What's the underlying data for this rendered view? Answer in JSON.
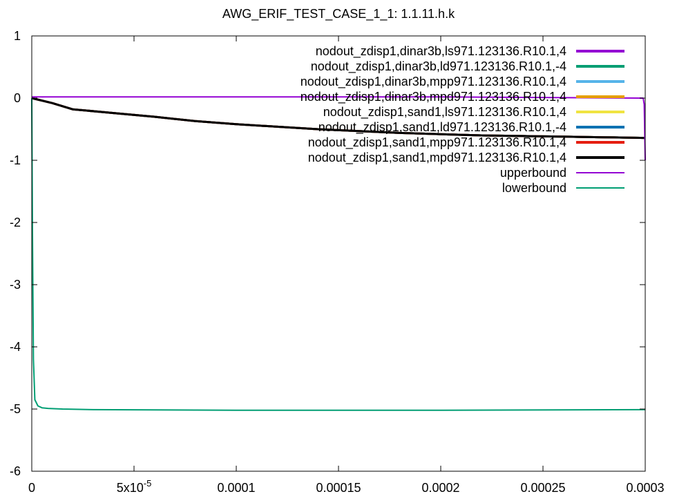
{
  "chart_data": {
    "type": "line",
    "title": "AWG_ERIF_TEST_CASE_1_1: 1.1.11.h.k",
    "xlabel": "",
    "ylabel": "",
    "xlim": [
      0,
      0.0003
    ],
    "ylim": [
      -6,
      1
    ],
    "grid": false,
    "legend_position": "top-right",
    "x_ticks": [
      {
        "value": 0,
        "label": "0"
      },
      {
        "value": 5e-05,
        "label": "5x10",
        "sup": "-5"
      },
      {
        "value": 0.0001,
        "label": "0.0001"
      },
      {
        "value": 0.00015,
        "label": "0.00015"
      },
      {
        "value": 0.0002,
        "label": "0.0002"
      },
      {
        "value": 0.00025,
        "label": "0.00025"
      },
      {
        "value": 0.0003,
        "label": "0.0003"
      }
    ],
    "y_ticks": [
      {
        "value": 1,
        "label": "1"
      },
      {
        "value": 0,
        "label": "0"
      },
      {
        "value": -1,
        "label": "-1"
      },
      {
        "value": -2,
        "label": "-2"
      },
      {
        "value": -3,
        "label": "-3"
      },
      {
        "value": -4,
        "label": "-4"
      },
      {
        "value": -5,
        "label": "-5"
      },
      {
        "value": -6,
        "label": "-6"
      }
    ],
    "series": [
      {
        "name": "nodout_zdisp1,dinar3b,ls971.123136.R10.1,4",
        "color": "#9400d3",
        "thick": true,
        "x": [
          0,
          1e-05,
          2e-05,
          4e-05,
          6e-05,
          8e-05,
          0.0001,
          0.00012,
          0.00014,
          0.00016,
          0.00018,
          0.0002,
          0.00022,
          0.00024,
          0.00026,
          0.00028,
          0.0003
        ],
        "y": [
          0,
          -0.08,
          -0.18,
          -0.24,
          -0.3,
          -0.37,
          -0.42,
          -0.46,
          -0.5,
          -0.53,
          -0.56,
          -0.58,
          -0.6,
          -0.61,
          -0.62,
          -0.63,
          -0.64
        ]
      },
      {
        "name": "nodout_zdisp1,dinar3b,ld971.123136.R10.1,-4",
        "color": "#009e73",
        "thick": true,
        "x": [
          0,
          1e-05,
          2e-05,
          4e-05,
          6e-05,
          8e-05,
          0.0001,
          0.00012,
          0.00014,
          0.00016,
          0.00018,
          0.0002,
          0.00022,
          0.00024,
          0.00026,
          0.00028,
          0.0003
        ],
        "y": [
          0,
          -0.08,
          -0.18,
          -0.24,
          -0.3,
          -0.37,
          -0.42,
          -0.46,
          -0.5,
          -0.53,
          -0.56,
          -0.58,
          -0.6,
          -0.61,
          -0.62,
          -0.63,
          -0.64
        ]
      },
      {
        "name": "nodout_zdisp1,dinar3b,mpp971.123136.R10.1,4",
        "color": "#56b4e9",
        "thick": true,
        "x": [
          0,
          1e-05,
          2e-05,
          4e-05,
          6e-05,
          8e-05,
          0.0001,
          0.00012,
          0.00014,
          0.00016,
          0.00018,
          0.0002,
          0.00022,
          0.00024,
          0.00026,
          0.00028,
          0.0003
        ],
        "y": [
          0,
          -0.08,
          -0.18,
          -0.24,
          -0.3,
          -0.37,
          -0.42,
          -0.46,
          -0.5,
          -0.53,
          -0.56,
          -0.58,
          -0.6,
          -0.61,
          -0.62,
          -0.63,
          -0.64
        ]
      },
      {
        "name": "nodout_zdisp1,dinar3b,mpd971.123136.R10.1,4",
        "color": "#e69f00",
        "thick": true,
        "x": [
          0,
          1e-05,
          2e-05,
          4e-05,
          6e-05,
          8e-05,
          0.0001,
          0.00012,
          0.00014,
          0.00016,
          0.00018,
          0.0002,
          0.00022,
          0.00024,
          0.00026,
          0.00028,
          0.0003
        ],
        "y": [
          0,
          -0.08,
          -0.18,
          -0.24,
          -0.3,
          -0.37,
          -0.42,
          -0.46,
          -0.5,
          -0.53,
          -0.56,
          -0.58,
          -0.6,
          -0.61,
          -0.62,
          -0.63,
          -0.64
        ]
      },
      {
        "name": "nodout_zdisp1,sand1,ls971.123136.R10.1,4",
        "color": "#f0e442",
        "thick": true,
        "x": [
          0,
          1e-05,
          2e-05,
          4e-05,
          6e-05,
          8e-05,
          0.0001,
          0.00012,
          0.00014,
          0.00016,
          0.00018,
          0.0002,
          0.00022,
          0.00024,
          0.00026,
          0.00028,
          0.0003
        ],
        "y": [
          0,
          -0.08,
          -0.18,
          -0.24,
          -0.3,
          -0.37,
          -0.42,
          -0.46,
          -0.5,
          -0.53,
          -0.56,
          -0.58,
          -0.6,
          -0.61,
          -0.62,
          -0.63,
          -0.64
        ]
      },
      {
        "name": "nodout_zdisp1,sand1,ld971.123136.R10.1,-4",
        "color": "#0072b2",
        "thick": true,
        "x": [
          0,
          1e-05,
          2e-05,
          4e-05,
          6e-05,
          8e-05,
          0.0001,
          0.00012,
          0.00014,
          0.00016,
          0.00018,
          0.0002,
          0.00022,
          0.00024,
          0.00026,
          0.00028,
          0.0003
        ],
        "y": [
          0,
          -0.08,
          -0.18,
          -0.24,
          -0.3,
          -0.37,
          -0.42,
          -0.46,
          -0.5,
          -0.53,
          -0.56,
          -0.58,
          -0.6,
          -0.61,
          -0.62,
          -0.63,
          -0.64
        ]
      },
      {
        "name": "nodout_zdisp1,sand1,mpp971.123136.R10.1,4",
        "color": "#e51e10",
        "thick": true,
        "x": [
          0,
          1e-05,
          2e-05,
          4e-05,
          6e-05,
          8e-05,
          0.0001,
          0.00012,
          0.00014,
          0.00016,
          0.00018,
          0.0002,
          0.00022,
          0.00024,
          0.00026,
          0.00028,
          0.0003
        ],
        "y": [
          0,
          -0.08,
          -0.18,
          -0.24,
          -0.3,
          -0.37,
          -0.42,
          -0.46,
          -0.5,
          -0.53,
          -0.56,
          -0.58,
          -0.6,
          -0.61,
          -0.62,
          -0.63,
          -0.64
        ]
      },
      {
        "name": "nodout_zdisp1,sand1,mpd971.123136.R10.1,4",
        "color": "#000000",
        "thick": true,
        "x": [
          0,
          1e-05,
          2e-05,
          4e-05,
          6e-05,
          8e-05,
          0.0001,
          0.00012,
          0.00014,
          0.00016,
          0.00018,
          0.0002,
          0.00022,
          0.00024,
          0.00026,
          0.00028,
          0.0003
        ],
        "y": [
          0,
          -0.08,
          -0.18,
          -0.24,
          -0.3,
          -0.37,
          -0.42,
          -0.46,
          -0.5,
          -0.53,
          -0.56,
          -0.58,
          -0.6,
          -0.61,
          -0.62,
          -0.63,
          -0.64
        ]
      },
      {
        "name": "upperbound",
        "color": "#9400d3",
        "thick": false,
        "x": [
          0,
          5e-07,
          1e-06,
          1e-05,
          0.0001,
          0.0002,
          0.000299,
          0.0002995,
          0.0003
        ],
        "y": [
          0.02,
          0.02,
          0.02,
          0.02,
          0.02,
          0.02,
          0.0,
          -0.1,
          -1.0
        ]
      },
      {
        "name": "lowerbound",
        "color": "#009e73",
        "thick": false,
        "x": [
          0,
          3e-07,
          8e-07,
          1.5e-06,
          3e-06,
          5e-06,
          8e-06,
          1.5e-05,
          3e-05,
          0.0001,
          0.0002,
          0.0003
        ],
        "y": [
          0,
          -2.0,
          -4.2,
          -4.85,
          -4.95,
          -4.98,
          -4.99,
          -5.0,
          -5.01,
          -5.02,
          -5.02,
          -5.01
        ]
      }
    ]
  }
}
